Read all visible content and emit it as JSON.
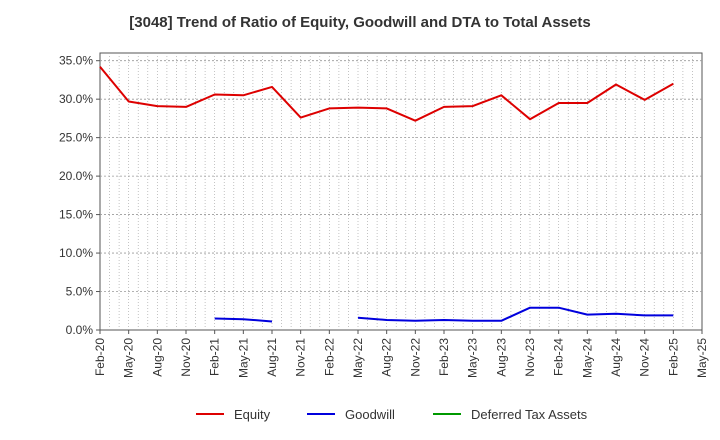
{
  "chart_data": {
    "type": "line",
    "title": "[3048]  Trend of Ratio of Equity, Goodwill and DTA to Total Assets",
    "xlabel": "",
    "ylabel": "",
    "ylim": [
      0,
      36
    ],
    "y_ticks": [
      0,
      5,
      10,
      15,
      20,
      25,
      30,
      35
    ],
    "y_tick_labels": [
      "0.0%",
      "5.0%",
      "10.0%",
      "15.0%",
      "20.0%",
      "25.0%",
      "30.0%",
      "35.0%"
    ],
    "x_tick_labels": [
      "Feb-20",
      "May-20",
      "Aug-20",
      "Nov-20",
      "Feb-21",
      "May-21",
      "Aug-21",
      "Nov-21",
      "Feb-22",
      "May-22",
      "Aug-22",
      "Nov-22",
      "Feb-23",
      "May-23",
      "Aug-23",
      "Nov-23",
      "Feb-24",
      "May-24",
      "Aug-24",
      "Nov-24",
      "Feb-25",
      "May-25"
    ],
    "categories": [
      "Feb-20",
      "May-20",
      "Aug-20",
      "Nov-20",
      "Feb-21",
      "May-21",
      "Aug-21",
      "Nov-21",
      "Feb-22",
      "May-22",
      "Aug-22",
      "Nov-22",
      "Feb-23",
      "May-23",
      "Aug-23",
      "Nov-23",
      "Feb-24",
      "May-24",
      "Aug-24",
      "Nov-24",
      "Feb-25"
    ],
    "grid": true,
    "legend_position": "bottom",
    "series": [
      {
        "name": "Equity",
        "color": "#dd0000",
        "values": [
          34.2,
          29.7,
          29.1,
          29.0,
          30.6,
          30.5,
          31.6,
          27.6,
          28.8,
          28.9,
          28.8,
          27.2,
          29.0,
          29.1,
          30.5,
          27.4,
          29.5,
          29.5,
          31.9,
          29.9,
          32.0
        ]
      },
      {
        "name": "Goodwill",
        "color": "#0000dd",
        "values": [
          null,
          null,
          null,
          null,
          1.5,
          1.4,
          1.1,
          null,
          null,
          1.6,
          1.3,
          1.2,
          1.3,
          1.2,
          1.2,
          2.9,
          2.9,
          2.0,
          2.1,
          1.9,
          1.9
        ]
      },
      {
        "name": "Deferred Tax Assets",
        "color": "#009900",
        "values": [
          null,
          null,
          null,
          null,
          null,
          null,
          null,
          null,
          null,
          null,
          null,
          null,
          null,
          null,
          null,
          null,
          null,
          null,
          null,
          null,
          null
        ]
      }
    ]
  }
}
